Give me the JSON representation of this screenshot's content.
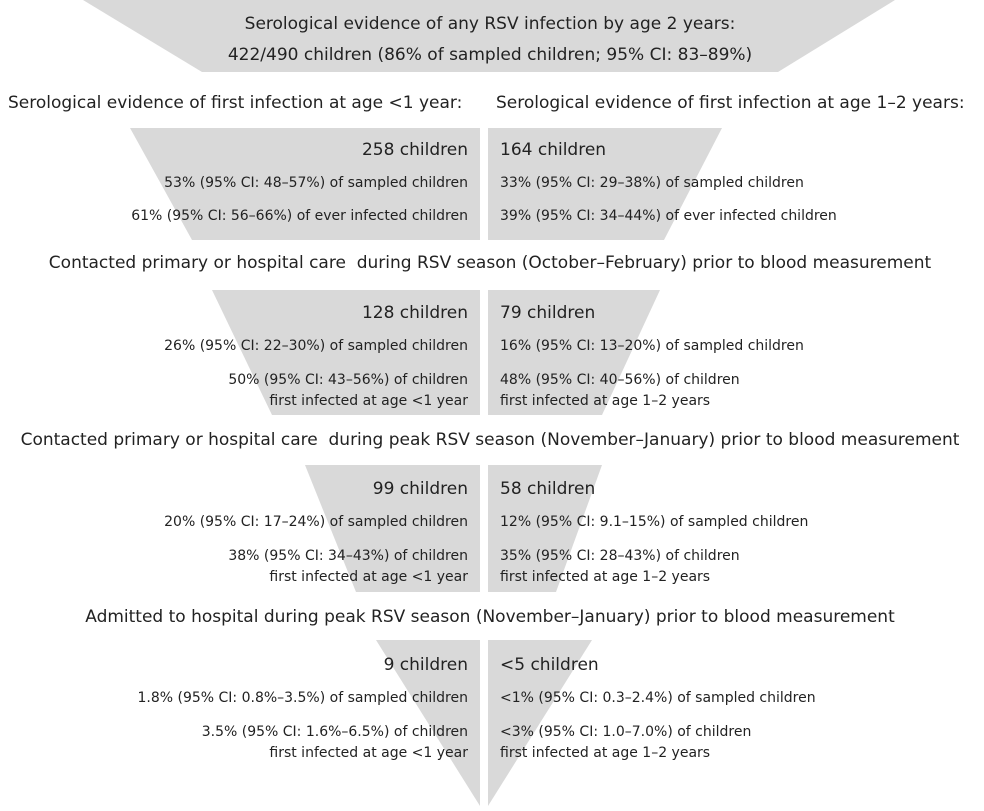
{
  "top": {
    "line1": "Serological evidence of any RSV infection by age 2 years:",
    "line2": "422/490 children (86% of sampled children; 95% CI: 83–89%)"
  },
  "split_headings": {
    "left": "Serological evidence of first infection at age <1 year:",
    "right": "Serological evidence of first infection at age 1–2 years:"
  },
  "stages": [
    {
      "left": {
        "count": "258 children",
        "lines": [
          "53% (95% CI: 48–57%) of sampled children",
          "61% (95% CI: 56–66%) of ever infected children"
        ]
      },
      "right": {
        "count": "164 children",
        "lines": [
          "33% (95% CI: 29–38%) of sampled children",
          "39% (95% CI: 34–44%) of ever infected children"
        ]
      }
    },
    {
      "heading": "Contacted primary or hospital care  during RSV season (October–February) prior to blood measurement",
      "left": {
        "count": "128 children",
        "lines": [
          "26% (95% CI: 22–30%) of sampled children",
          "50% (95% CI: 43–56%) of children",
          "first infected at age <1 year"
        ]
      },
      "right": {
        "count": "79 children",
        "lines": [
          "16% (95% CI: 13–20%) of sampled children",
          "48% (95% CI: 40–56%) of children",
          "first infected at age 1–2 years"
        ]
      }
    },
    {
      "heading": "Contacted primary or hospital care  during peak RSV season (November–January) prior to blood measurement",
      "left": {
        "count": "99 children",
        "lines": [
          "20% (95% CI: 17–24%) of sampled children",
          "38% (95% CI: 34–43%) of children",
          "first infected at age <1 year"
        ]
      },
      "right": {
        "count": "58 children",
        "lines": [
          "12% (95% CI: 9.1–15%) of sampled children",
          "35% (95% CI: 28–43%) of children",
          "first infected at age 1–2 years"
        ]
      }
    },
    {
      "heading": "Admitted to hospital during peak RSV season (November–January) prior to blood measurement",
      "left": {
        "count": "9 children",
        "lines": [
          "1.8% (95% CI: 0.8%–3.5%) of sampled children",
          "3.5% (95% CI: 1.6%–6.5%) of children",
          "first infected at age <1 year"
        ]
      },
      "right": {
        "count": "<5 children",
        "lines": [
          "<1% (95% CI: 0.3–2.4%) of sampled children",
          "<3% (95% CI: 1.0–7.0%) of children",
          "first infected at age 1–2 years"
        ]
      }
    }
  ]
}
